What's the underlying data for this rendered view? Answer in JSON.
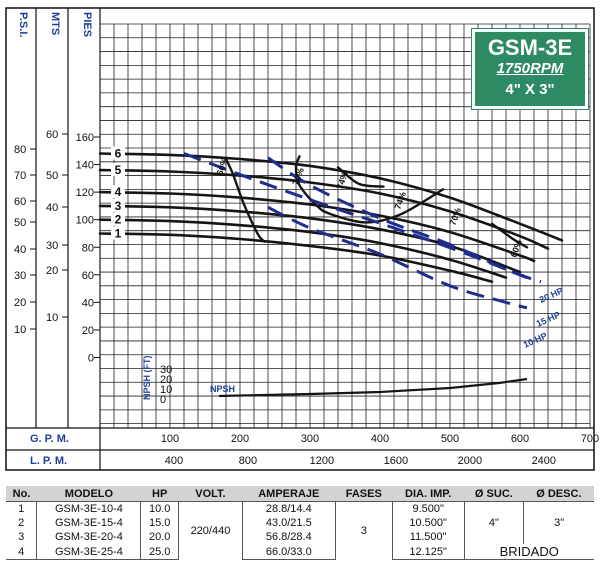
{
  "badge": {
    "model": "GSM-3E",
    "rpm": "1750RPM",
    "size": "4\" X 3\""
  },
  "chart_data": {
    "type": "line",
    "title": "",
    "y_axes": [
      {
        "label": "P.S.I.",
        "ticks": [
          "10",
          "20",
          "30",
          "40",
          "50",
          "60",
          "70",
          "80"
        ]
      },
      {
        "label": "MTS",
        "ticks": [
          "10",
          "20",
          "30",
          "40",
          "50",
          "60"
        ]
      },
      {
        "label": "PIES",
        "ticks": [
          "0",
          "20",
          "40",
          "60",
          "80",
          "100",
          "120",
          "140",
          "160"
        ]
      }
    ],
    "x_axes": [
      {
        "label": "G. P. M.",
        "ticks": [
          "100",
          "200",
          "300",
          "400",
          "500",
          "600",
          "700"
        ]
      },
      {
        "label": "L. P. M.",
        "ticks": [
          "400",
          "800",
          "1200",
          "1600",
          "2000",
          "2400"
        ]
      }
    ],
    "xlim_gpm": [
      0,
      700
    ],
    "ylim_ft": [
      0,
      160
    ],
    "grid": true,
    "series": [
      {
        "name": "1",
        "points": [
          [
            0,
            90
          ],
          [
            100,
            89
          ],
          [
            200,
            86
          ],
          [
            300,
            81
          ],
          [
            400,
            74
          ],
          [
            500,
            63
          ],
          [
            560,
            55
          ]
        ]
      },
      {
        "name": "2",
        "points": [
          [
            0,
            100
          ],
          [
            100,
            99
          ],
          [
            200,
            96
          ],
          [
            300,
            91
          ],
          [
            400,
            83
          ],
          [
            500,
            71
          ],
          [
            580,
            58
          ]
        ]
      },
      {
        "name": "3",
        "points": [
          [
            0,
            110
          ],
          [
            100,
            109
          ],
          [
            200,
            106
          ],
          [
            300,
            101
          ],
          [
            400,
            93
          ],
          [
            500,
            81
          ],
          [
            600,
            62
          ]
        ]
      },
      {
        "name": "4",
        "points": [
          [
            0,
            120
          ],
          [
            100,
            119
          ],
          [
            200,
            116
          ],
          [
            300,
            111
          ],
          [
            400,
            103
          ],
          [
            500,
            91
          ],
          [
            600,
            74
          ],
          [
            620,
            70
          ]
        ]
      },
      {
        "name": "5",
        "points": [
          [
            0,
            136
          ],
          [
            100,
            135
          ],
          [
            200,
            132
          ],
          [
            300,
            127
          ],
          [
            400,
            119
          ],
          [
            500,
            106
          ],
          [
            600,
            88
          ],
          [
            640,
            79
          ]
        ]
      },
      {
        "name": "6",
        "points": [
          [
            0,
            148
          ],
          [
            100,
            147
          ],
          [
            200,
            144
          ],
          [
            300,
            139
          ],
          [
            400,
            130
          ],
          [
            500,
            116
          ],
          [
            600,
            97
          ],
          [
            660,
            85
          ]
        ]
      }
    ],
    "efficiency": [
      {
        "label": "60%",
        "points": [
          [
            180,
            144
          ],
          [
            190,
            133
          ],
          [
            205,
            112
          ],
          [
            225,
            90
          ],
          [
            235,
            84
          ]
        ]
      },
      {
        "label": "70%",
        "points": [
          [
            285,
            146
          ],
          [
            280,
            138
          ],
          [
            285,
            125
          ],
          [
            310,
            110
          ],
          [
            330,
            104
          ],
          [
            380,
            98
          ],
          [
            430,
            104
          ],
          [
            490,
            122
          ]
        ]
      },
      {
        "label": "74%",
        "points": [
          [
            340,
            138
          ],
          [
            370,
            126
          ],
          [
            405,
            124
          ]
        ]
      },
      {
        "label": "74%",
        "points": [
          [
            405,
            124
          ]
        ]
      },
      {
        "label": "70%",
        "points": [
          [
            490,
            122
          ]
        ]
      },
      {
        "label": "60%",
        "points": [
          [
            560,
            97
          ],
          [
            590,
            86
          ],
          [
            610,
            80
          ]
        ]
      }
    ],
    "power": [
      {
        "label": "20 HP",
        "points": [
          [
            120,
            148
          ],
          [
            220,
            129
          ],
          [
            320,
            111
          ],
          [
            420,
            94
          ],
          [
            520,
            76
          ],
          [
            600,
            60
          ],
          [
            630,
            55
          ]
        ]
      },
      {
        "label": "15 HP",
        "points": [
          [
            240,
            145
          ],
          [
            300,
            125
          ],
          [
            400,
            101
          ],
          [
            500,
            82
          ],
          [
            580,
            64
          ],
          [
            610,
            58
          ]
        ]
      },
      {
        "label": "10 HP",
        "points": [
          [
            240,
            109
          ],
          [
            300,
            94
          ],
          [
            400,
            75
          ],
          [
            500,
            52
          ],
          [
            580,
            40
          ],
          [
            610,
            36
          ]
        ]
      }
    ],
    "npsh": {
      "label": "NPSH",
      "axis_label": "NPSH (FT)",
      "axis_ticks": [
        "0",
        "10",
        "20",
        "30"
      ],
      "points": [
        [
          170,
          2
        ],
        [
          300,
          4
        ],
        [
          400,
          6
        ],
        [
          500,
          10
        ],
        [
          570,
          15
        ],
        [
          610,
          19
        ]
      ]
    }
  },
  "table": {
    "headers": [
      "No.",
      "MODELO",
      "HP",
      "VOLT.",
      "AMPERAJE",
      "FASES",
      "DIA. IMP.",
      "Ø SUC.",
      "Ø DESC."
    ],
    "rows": [
      [
        "1",
        "GSM-3E-10-4",
        "10.0",
        "28.8/14.4",
        "9.500\""
      ],
      [
        "2",
        "GSM-3E-15-4",
        "15.0",
        "43.0/21.5",
        "10.500\""
      ],
      [
        "3",
        "GSM-3E-20-4",
        "20.0",
        "56.8/28.4",
        "11.500\""
      ],
      [
        "4",
        "GSM-3E-25-4",
        "25.0",
        "66.0/33.0",
        "12.125\""
      ]
    ],
    "volt": "220/440",
    "fases": "3",
    "suc": "4\"",
    "desc": "3\"",
    "connection": "BRIDADO"
  }
}
